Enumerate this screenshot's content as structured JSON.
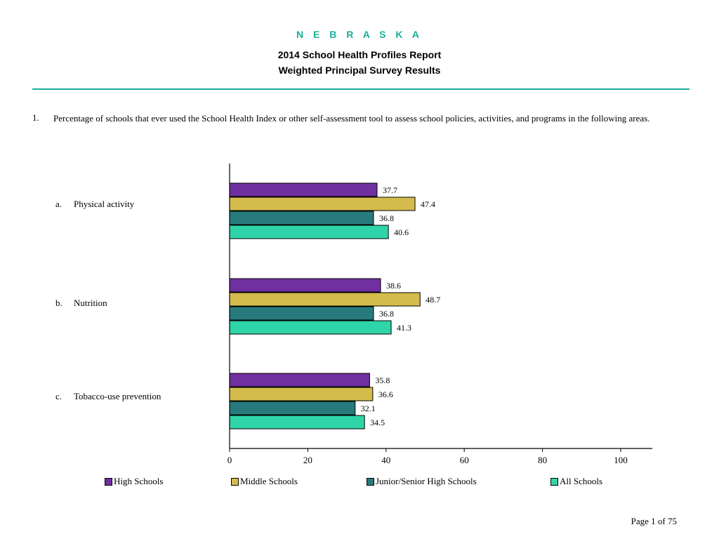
{
  "header": {
    "state": "N E B R A S K A",
    "title_line1": "2014 School Health Profiles Report",
    "title_line2": "Weighted Principal Survey Results"
  },
  "question": {
    "number": "1.",
    "text": "Percentage of schools that ever used the School Health Index or other self-assessment tool to assess school policies, activities, and programs in the following areas."
  },
  "chart_data": {
    "type": "bar",
    "orientation": "horizontal",
    "categories": [
      {
        "letter": "a.",
        "label": "Physical activity"
      },
      {
        "letter": "b.",
        "label": "Nutrition"
      },
      {
        "letter": "c.",
        "label": "Tobacco-use prevention"
      }
    ],
    "series": [
      {
        "name": "High Schools",
        "color": "#7030a0",
        "values": [
          37.7,
          38.6,
          35.8
        ]
      },
      {
        "name": "Middle Schools",
        "color": "#d4bc4c",
        "values": [
          47.4,
          48.7,
          36.6
        ]
      },
      {
        "name": "Junior/Senior High Schools",
        "color": "#277b7c",
        "values": [
          36.8,
          36.8,
          32.1
        ]
      },
      {
        "name": "All Schools",
        "color": "#2fd4a8",
        "values": [
          40.6,
          41.3,
          34.5
        ]
      }
    ],
    "xlim": [
      0,
      100
    ],
    "xticks": [
      0,
      20,
      40,
      60,
      80,
      100
    ],
    "legend_position": "bottom",
    "grid": false
  },
  "footer": {
    "page_label": "Page 1 of 75"
  }
}
